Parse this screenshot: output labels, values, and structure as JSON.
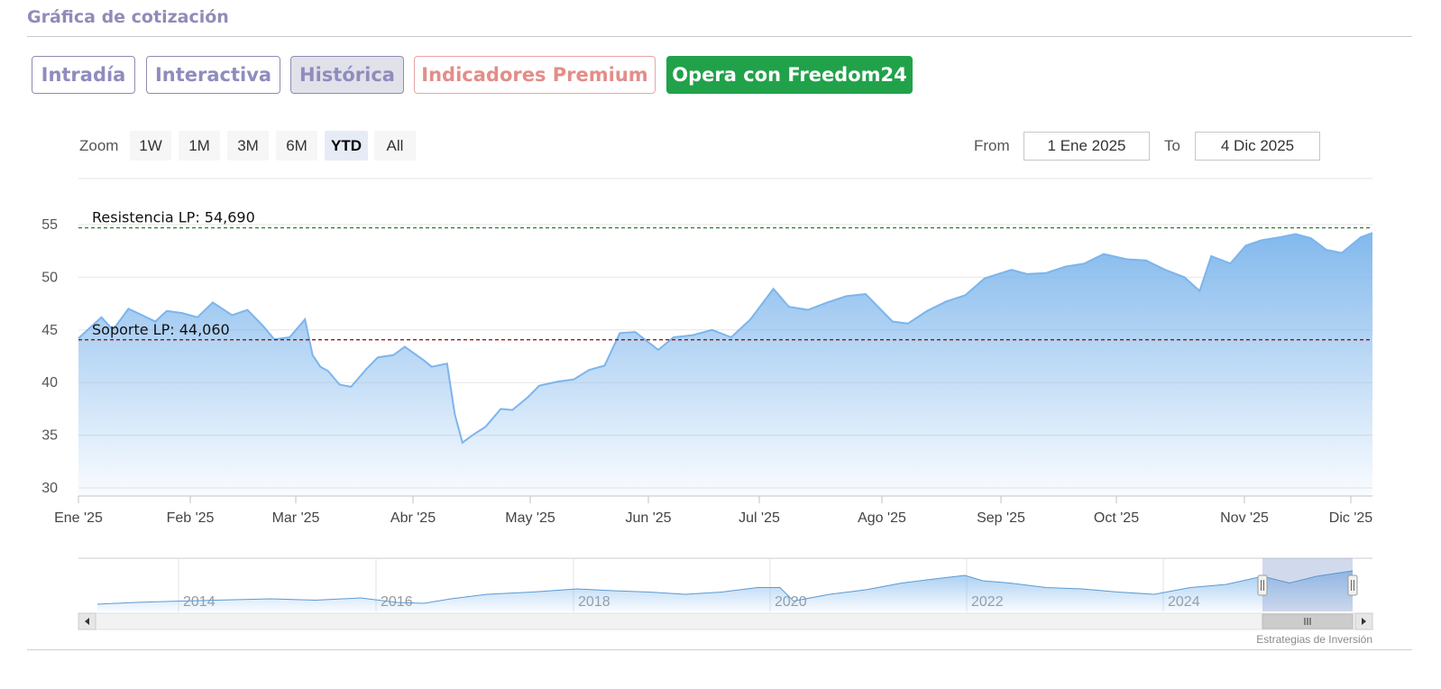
{
  "section_title": "Gráfica de cotización",
  "tabs": [
    {
      "label": "Intradía",
      "state": "normal"
    },
    {
      "label": "Interactiva",
      "state": "normal"
    },
    {
      "label": "Histórica",
      "state": "active"
    },
    {
      "label": "Indicadores Premium",
      "state": "premium"
    },
    {
      "label": "Opera con Freedom24",
      "state": "cta"
    }
  ],
  "range_selector": {
    "zoom_label": "Zoom",
    "buttons": [
      "1W",
      "1M",
      "3M",
      "6M",
      "YTD",
      "All"
    ],
    "selected": "YTD",
    "from_label": "From",
    "from_value": "1 Ene 2025",
    "to_label": "To",
    "to_value": "4 Dic 2025"
  },
  "credit": "Estrategias de Inversión",
  "colors": {
    "series_line": "#7cb5ec",
    "area_top": "#7cb5ec",
    "resistance": "#2e7d32",
    "support": "#8b0000",
    "cta": "#21a24a"
  },
  "chart_data": {
    "type": "area",
    "title": "",
    "xlabel": "",
    "ylabel": "",
    "ylim": [
      30,
      55
    ],
    "y_ticks": [
      30,
      35,
      40,
      45,
      50,
      55
    ],
    "x_ticks": [
      "Ene '25",
      "Feb '25",
      "Mar '25",
      "Abr '25",
      "May '25",
      "Jun '25",
      "Jul '25",
      "Ago '25",
      "Sep '25",
      "Oct '25",
      "Nov '25",
      "Dic '25"
    ],
    "grid": true,
    "plot_lines": [
      {
        "label": "Resistencia LP: 54,690",
        "value": 54.69,
        "style": "dashed",
        "color": "#2e7d32"
      },
      {
        "label": "Soporte LP: 44,060",
        "value": 44.06,
        "style": "dashed",
        "color": "#8b0000"
      }
    ],
    "series": [
      {
        "x": [
          "2025-01-01",
          "2025-01-07",
          "2025-01-10",
          "2025-01-14",
          "2025-01-17",
          "2025-01-21",
          "2025-01-24",
          "2025-01-28",
          "2025-02-01",
          "2025-02-05",
          "2025-02-10",
          "2025-02-14",
          "2025-02-18",
          "2025-02-21",
          "2025-02-25",
          "2025-03-01",
          "2025-03-03",
          "2025-03-05",
          "2025-03-07",
          "2025-03-10",
          "2025-03-13",
          "2025-03-17",
          "2025-03-20",
          "2025-03-24",
          "2025-03-27",
          "2025-04-01",
          "2025-04-03",
          "2025-04-07",
          "2025-04-09",
          "2025-04-11",
          "2025-04-14",
          "2025-04-17",
          "2025-04-21",
          "2025-04-24",
          "2025-04-28",
          "2025-05-01",
          "2025-05-06",
          "2025-05-10",
          "2025-05-14",
          "2025-05-18",
          "2025-05-22",
          "2025-05-26",
          "2025-06-01",
          "2025-06-05",
          "2025-06-10",
          "2025-06-15",
          "2025-06-20",
          "2025-06-25",
          "2025-07-01",
          "2025-07-05",
          "2025-07-10",
          "2025-07-15",
          "2025-07-20",
          "2025-07-25",
          "2025-08-01",
          "2025-08-05",
          "2025-08-10",
          "2025-08-15",
          "2025-08-20",
          "2025-08-25",
          "2025-09-01",
          "2025-09-05",
          "2025-09-10",
          "2025-09-15",
          "2025-09-20",
          "2025-09-25",
          "2025-10-01",
          "2025-10-06",
          "2025-10-11",
          "2025-10-16",
          "2025-10-20",
          "2025-10-23",
          "2025-10-28",
          "2025-11-01",
          "2025-11-05",
          "2025-11-10",
          "2025-11-14",
          "2025-11-18",
          "2025-11-22",
          "2025-11-26",
          "2025-12-01",
          "2025-12-04"
        ],
        "values": [
          44.2,
          46.2,
          45.0,
          47.0,
          46.5,
          45.8,
          46.8,
          46.6,
          46.2,
          47.6,
          46.4,
          46.9,
          45.4,
          44.1,
          44.3,
          46.0,
          42.6,
          41.5,
          41.1,
          39.8,
          39.6,
          41.3,
          42.4,
          42.6,
          43.4,
          42.1,
          41.5,
          41.8,
          37.0,
          34.3,
          35.1,
          35.8,
          37.5,
          37.4,
          38.6,
          39.7,
          40.1,
          40.3,
          41.2,
          41.6,
          44.7,
          44.8,
          43.1,
          44.3,
          44.5,
          45.0,
          44.3,
          46.0,
          48.9,
          47.2,
          46.9,
          47.6,
          48.2,
          48.4,
          45.8,
          45.6,
          46.8,
          47.7,
          48.3,
          49.9,
          50.7,
          50.3,
          50.4,
          51.0,
          51.3,
          52.2,
          51.7,
          51.6,
          50.7,
          50.0,
          48.7,
          52.0,
          51.3,
          53.0,
          53.5,
          53.8,
          54.1,
          53.7,
          52.6,
          52.3,
          53.8,
          54.2
        ]
      }
    ],
    "navigator": {
      "x_ticks": [
        "2014",
        "2016",
        "2018",
        "2020",
        "2022",
        "2024"
      ]
    }
  }
}
